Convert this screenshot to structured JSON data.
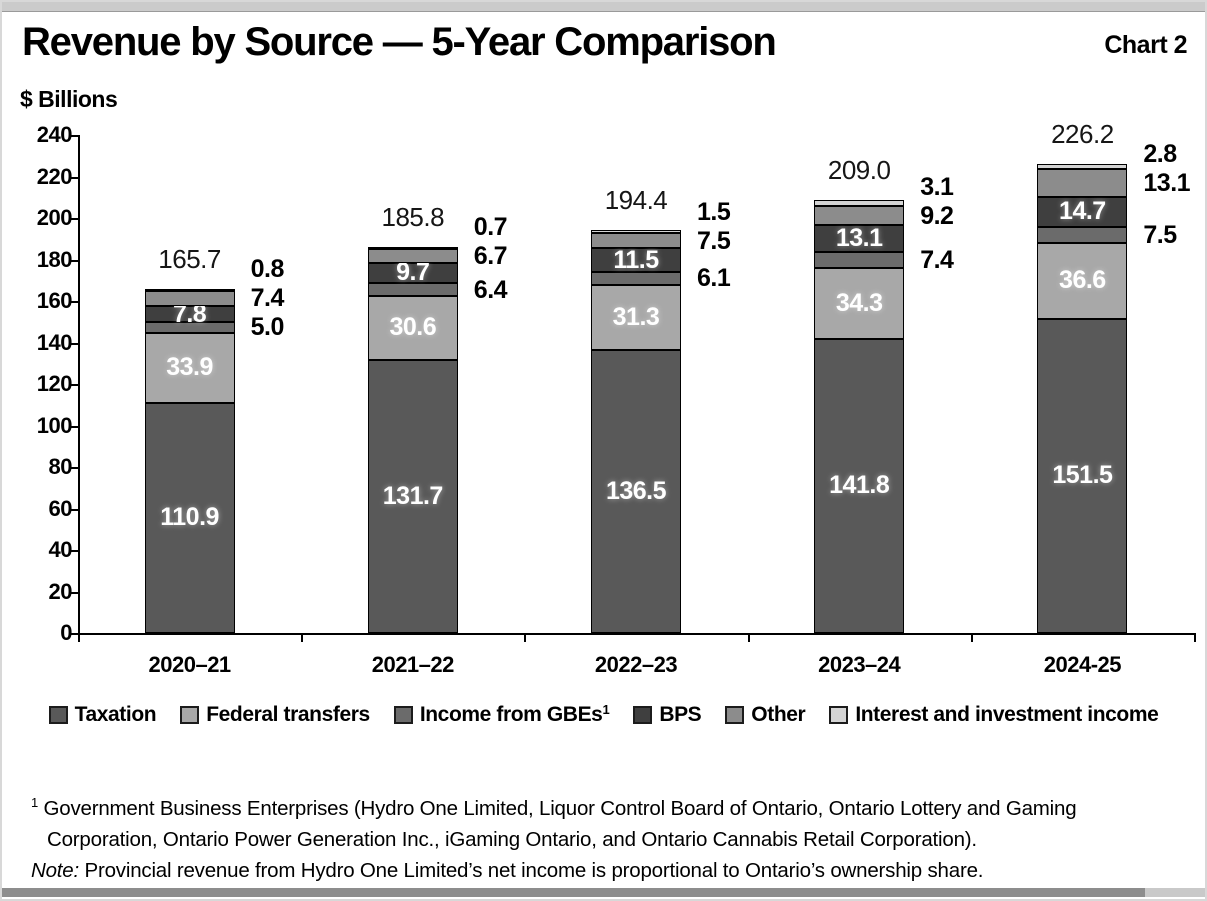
{
  "page": {
    "title": "Revenue by Source — 5-Year Comparison",
    "chart_label": "Chart 2",
    "units_label": "$ Billions"
  },
  "chart_data": {
    "type": "bar",
    "stacked": true,
    "title": "Revenue by Source — 5-Year Comparison",
    "ylabel": "$ Billions",
    "ylim": [
      0,
      240
    ],
    "ytick_step": 20,
    "grid": false,
    "legend_position": "bottom",
    "categories": [
      "2020–21",
      "2021–22",
      "2022–23",
      "2023–24",
      "2024-25"
    ],
    "totals": [
      165.7,
      185.8,
      194.4,
      209.0,
      226.2
    ],
    "series": [
      {
        "name": "Taxation",
        "color": "#595959",
        "label_style": "inside",
        "values": [
          110.9,
          131.7,
          136.5,
          141.8,
          151.5
        ]
      },
      {
        "name": "Federal transfers",
        "color": "#a8a8a8",
        "label_style": "inside",
        "values": [
          33.9,
          30.6,
          31.3,
          34.3,
          36.6
        ]
      },
      {
        "name": "Income from GBEs",
        "legend_sup": "1",
        "color": "#6b6b6b",
        "label_style": "outside",
        "values": [
          5.0,
          6.4,
          6.1,
          7.4,
          7.5
        ]
      },
      {
        "name": "BPS",
        "color": "#3f3f3f",
        "label_style": "inside",
        "values": [
          7.8,
          9.7,
          11.5,
          13.1,
          14.7
        ]
      },
      {
        "name": "Other",
        "color": "#8c8c8c",
        "label_style": "outside",
        "values": [
          7.4,
          6.7,
          7.5,
          9.2,
          13.1
        ]
      },
      {
        "name": "Interest and investment income",
        "color": "#d4d4d4",
        "label_style": "outside",
        "values": [
          0.8,
          0.7,
          1.5,
          3.1,
          2.8
        ]
      }
    ]
  },
  "footnote": {
    "sup": "1",
    "line1": "Government Business Enterprises (Hydro One Limited, Liquor Control Board of Ontario, Ontario Lottery and Gaming Corporation, Ontario Power Generation Inc., iGaming Ontario, and Ontario Cannabis Retail Corporation).",
    "note_label": "Note:",
    "note_text": " Provincial revenue from Hydro One Limited’s net income is proportional to Ontario’s ownership share."
  }
}
